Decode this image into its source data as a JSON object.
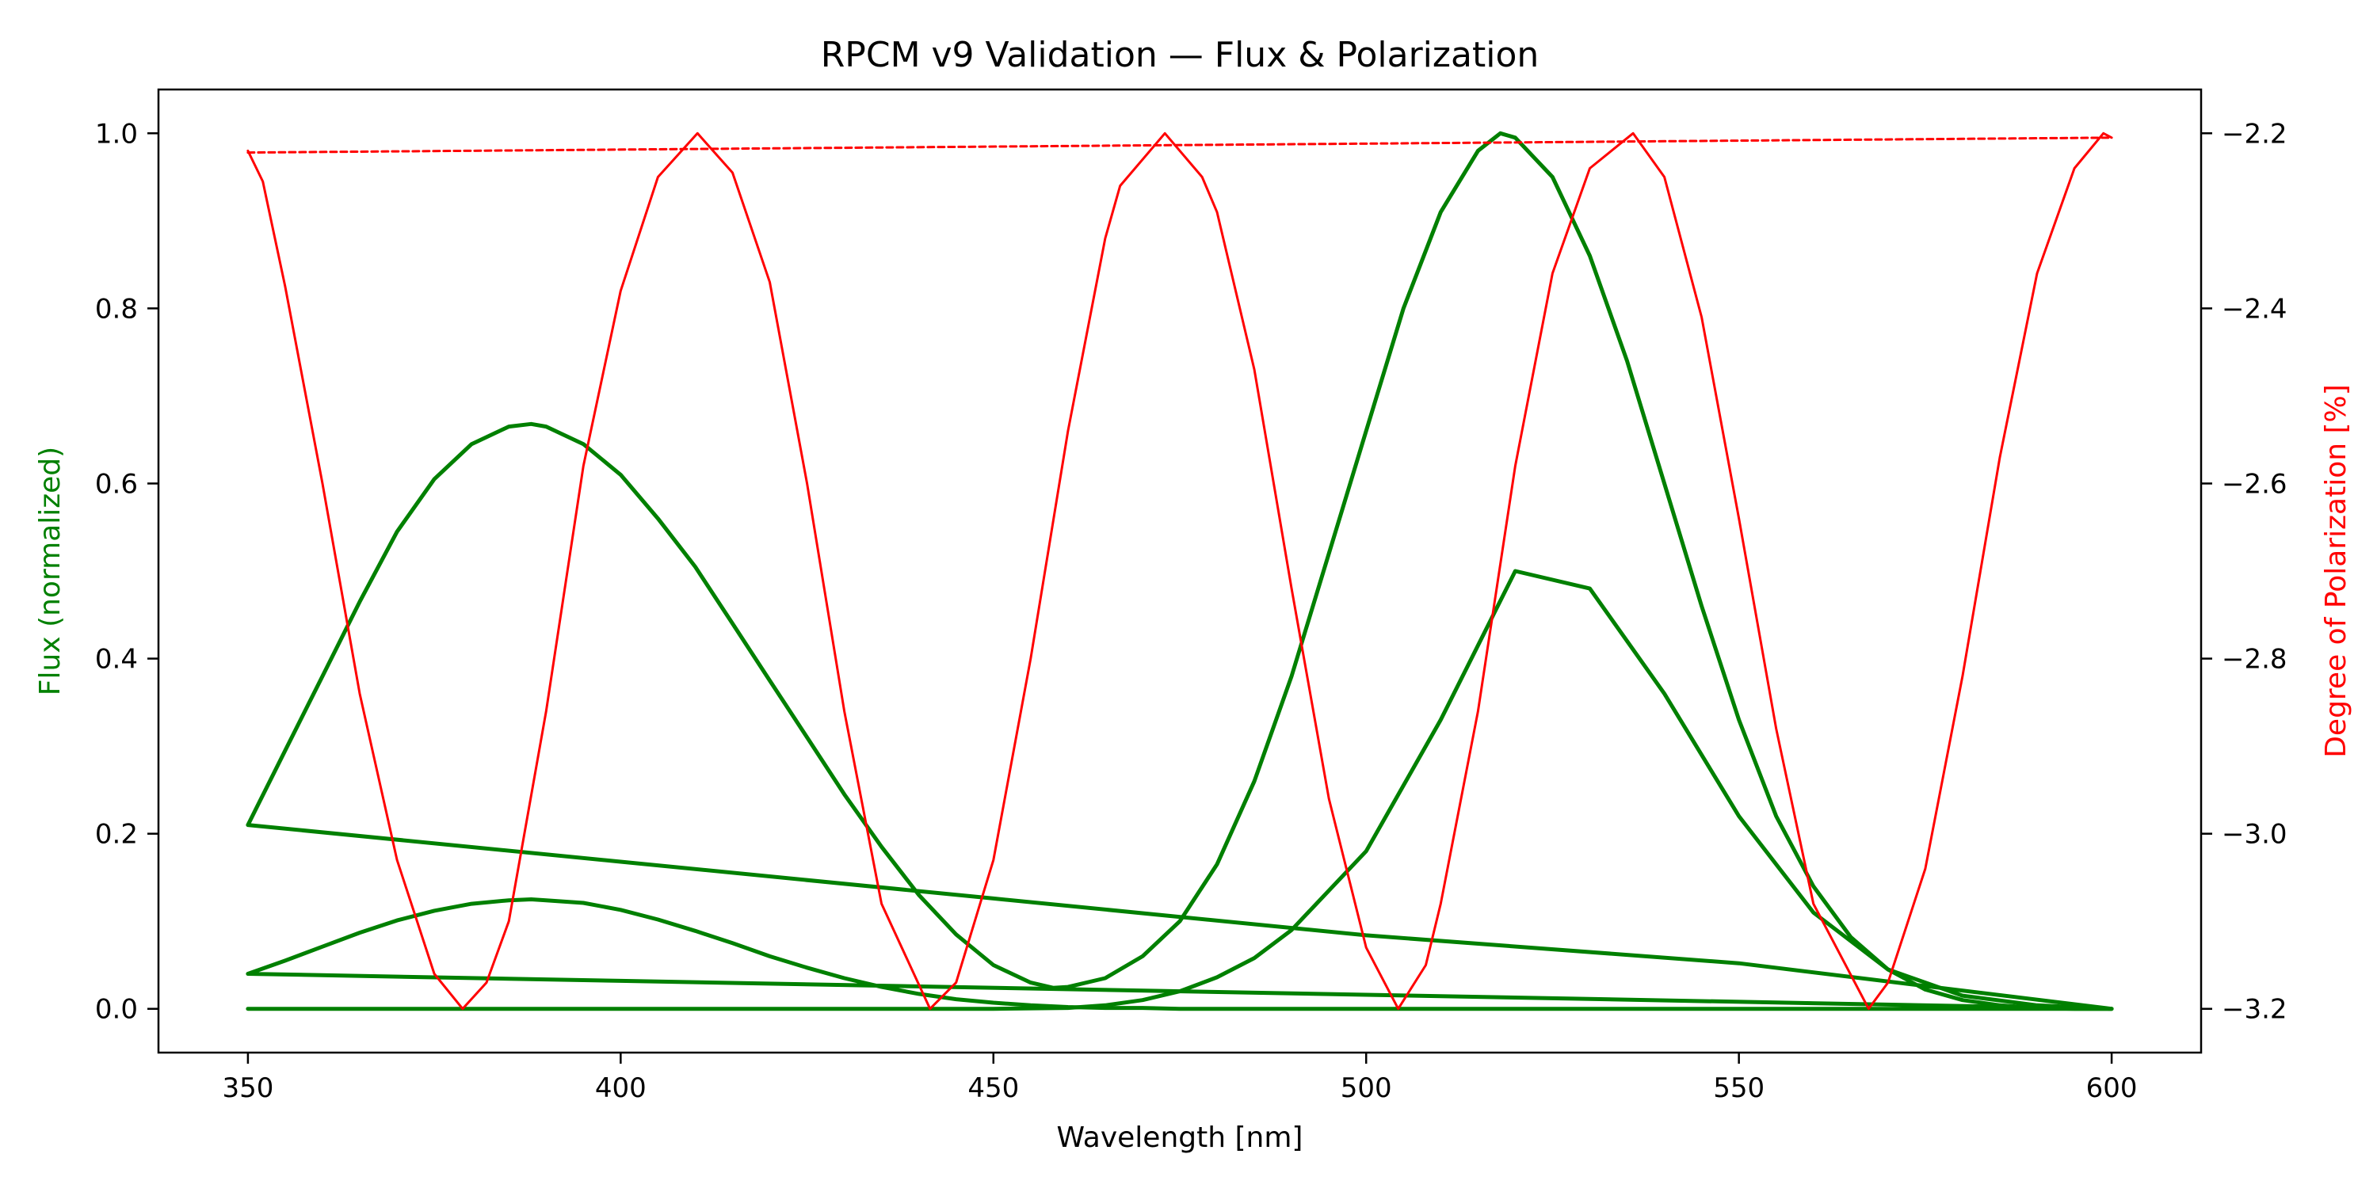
{
  "chart_data": {
    "type": "line",
    "title": "RPCM v9 Validation — Flux & Polarization",
    "xlabel": "Wavelength [nm]",
    "ylabel_left": "Flux (normalized)",
    "ylabel_right": "Degree of Polarization [%]",
    "xlim": [
      338,
      612
    ],
    "ylim_left": [
      -0.05,
      1.05
    ],
    "ylim_right": [
      -3.25,
      -2.15
    ],
    "x_ticks": [
      350,
      400,
      450,
      500,
      550,
      600
    ],
    "x_tick_labels": [
      "350",
      "400",
      "450",
      "500",
      "550",
      "600"
    ],
    "y_left_ticks": [
      0.0,
      0.2,
      0.4,
      0.6,
      0.8,
      1.0
    ],
    "y_left_tick_labels": [
      "0.0",
      "0.2",
      "0.4",
      "0.6",
      "0.8",
      "1.0"
    ],
    "y_right_ticks": [
      -3.2,
      -3.0,
      -2.8,
      -2.6,
      -2.4,
      -2.2
    ],
    "y_right_tick_labels": [
      "−3.2",
      "−3.0",
      "−2.8",
      "−2.6",
      "−2.4",
      "−2.2"
    ],
    "grid": false,
    "legend": "none",
    "colors": {
      "flux": "#008000",
      "polarization": "#ff0000",
      "left_label": "#008000",
      "right_label": "#ff0000"
    },
    "series": [
      {
        "axis": "left",
        "color": "#008000",
        "style": "solid",
        "x": [
          350,
          355,
          360,
          365,
          370,
          375,
          380,
          385,
          388,
          390,
          395,
          400,
          405,
          410,
          415,
          420,
          425,
          430,
          435,
          440,
          445,
          450,
          455,
          458,
          460,
          465,
          470,
          475,
          480,
          485,
          490,
          495,
          500,
          505,
          510,
          515,
          518,
          520,
          525,
          530,
          535,
          540,
          545,
          550,
          555,
          560,
          565,
          570,
          575,
          580,
          585,
          590,
          595,
          600,
          550,
          500,
          450,
          400,
          350
        ],
        "y": [
          0.21,
          0.295,
          0.38,
          0.465,
          0.545,
          0.605,
          0.645,
          0.665,
          0.668,
          0.665,
          0.645,
          0.61,
          0.56,
          0.505,
          0.44,
          0.375,
          0.31,
          0.245,
          0.185,
          0.13,
          0.085,
          0.05,
          0.03,
          0.024,
          0.025,
          0.035,
          0.06,
          0.1,
          0.165,
          0.26,
          0.38,
          0.52,
          0.66,
          0.8,
          0.91,
          0.98,
          1.0,
          0.995,
          0.95,
          0.86,
          0.74,
          0.6,
          0.46,
          0.33,
          0.22,
          0.14,
          0.082,
          0.045,
          0.022,
          0.01,
          0.004,
          0.001,
          0.0,
          0.0,
          0.052,
          0.084,
          0.126,
          0.168,
          0.21
        ]
      },
      {
        "axis": "left",
        "color": "#008000",
        "style": "solid",
        "x": [
          350,
          355,
          360,
          365,
          370,
          375,
          380,
          385,
          388,
          390,
          395,
          400,
          405,
          410,
          415,
          420,
          425,
          430,
          435,
          440,
          445,
          450,
          455,
          460,
          465,
          470,
          475,
          480,
          485,
          490,
          500,
          550,
          600,
          500,
          400,
          350
        ],
        "y": [
          0.04,
          0.055,
          0.071,
          0.087,
          0.101,
          0.112,
          0.12,
          0.124,
          0.125,
          0.124,
          0.121,
          0.113,
          0.102,
          0.089,
          0.075,
          0.06,
          0.047,
          0.035,
          0.025,
          0.017,
          0.011,
          0.007,
          0.004,
          0.002,
          0.001,
          0.001,
          0.0,
          0.0,
          0.0,
          0.0,
          0.0,
          0.0,
          0.0,
          0.016,
          0.032,
          0.04
        ]
      },
      {
        "axis": "left",
        "color": "#008000",
        "style": "solid",
        "x": [
          350,
          400,
          450,
          460,
          465,
          470,
          475,
          480,
          485,
          490,
          500,
          510,
          520,
          530,
          540,
          550,
          560,
          570,
          580,
          590,
          600
        ],
        "y": [
          0.0,
          0.0,
          0.0,
          0.001,
          0.004,
          0.01,
          0.02,
          0.036,
          0.058,
          0.09,
          0.18,
          0.33,
          0.5,
          0.48,
          0.36,
          0.22,
          0.11,
          0.045,
          0.015,
          0.004,
          0.0
        ]
      },
      {
        "axis": "right",
        "color": "#ff0000",
        "style": "solid",
        "x": [
          350,
          352,
          355,
          360,
          365,
          370,
          375,
          378.8,
          382,
          385,
          390,
          395,
          400,
          405,
          410.3,
          415,
          420,
          425,
          430,
          435,
          441.5,
          445,
          450,
          455,
          460,
          465,
          467,
          473,
          478,
          480,
          485,
          490,
          495,
          500,
          504.3,
          508,
          510,
          515,
          520,
          525,
          530,
          535.8,
          540,
          545,
          550,
          555,
          560,
          567.4,
          570,
          575,
          580,
          585,
          590,
          595,
          598.9,
          600
        ],
        "y": [
          -2.22,
          -2.255,
          -2.375,
          -2.6,
          -2.84,
          -3.03,
          -3.16,
          -3.2,
          -3.17,
          -3.1,
          -2.86,
          -2.58,
          -2.38,
          -2.25,
          -2.2,
          -2.245,
          -2.37,
          -2.6,
          -2.86,
          -3.08,
          -3.2,
          -3.17,
          -3.03,
          -2.8,
          -2.54,
          -2.32,
          -2.26,
          -2.2,
          -2.25,
          -2.29,
          -2.47,
          -2.72,
          -2.96,
          -3.13,
          -3.2,
          -3.15,
          -3.08,
          -2.86,
          -2.58,
          -2.36,
          -2.24,
          -2.2,
          -2.25,
          -2.41,
          -2.64,
          -2.88,
          -3.08,
          -3.2,
          -3.17,
          -3.04,
          -2.82,
          -2.57,
          -2.36,
          -2.24,
          -2.2,
          -2.205
        ]
      },
      {
        "axis": "right",
        "color": "#ff0000",
        "style": "dashed",
        "x": [
          350,
          600
        ],
        "y": [
          -2.222,
          -2.205
        ]
      }
    ]
  }
}
